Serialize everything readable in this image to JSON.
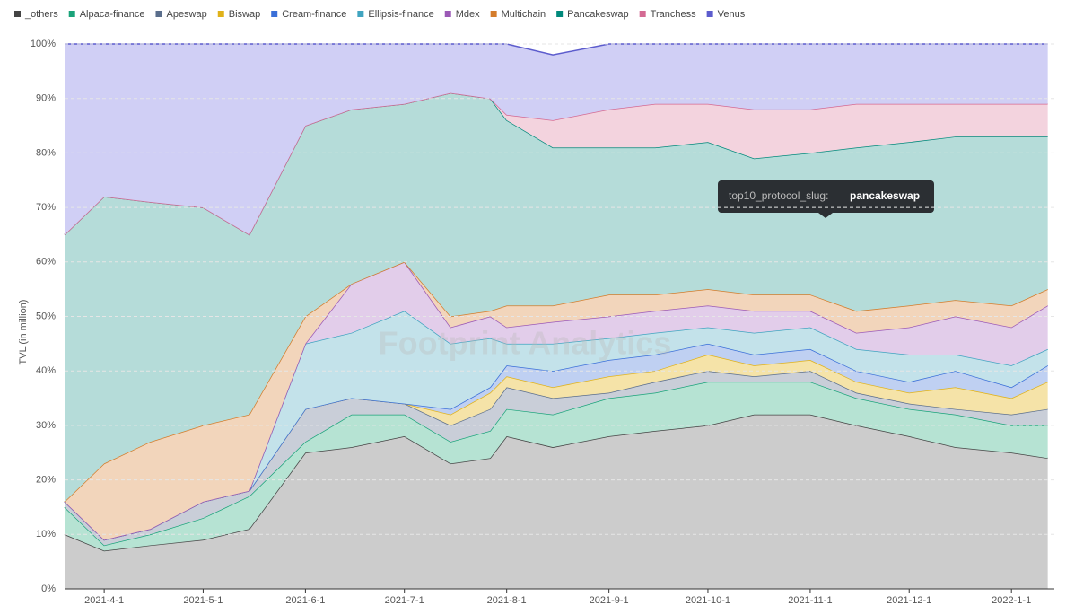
{
  "chart_data": {
    "type": "stacked-area-percent",
    "y_label": "TVL (in million)",
    "watermark": "Footprint Analytics",
    "tooltip": {
      "key": "top10_protocol_slug:",
      "value": "pancakeswap"
    },
    "grid": true,
    "legend_position": "top",
    "x": [
      "2021-03-20",
      "2021-04-01",
      "2021-04-15",
      "2021-05-01",
      "2021-05-15",
      "2021-06-01",
      "2021-06-15",
      "2021-07-01",
      "2021-07-15",
      "2021-07-27",
      "2021-08-01",
      "2021-08-15",
      "2021-09-01",
      "2021-09-15",
      "2021-10-01",
      "2021-10-15",
      "2021-11-01",
      "2021-11-15",
      "2021-12-01",
      "2021-12-15",
      "2022-01-01",
      "2022-01-12"
    ],
    "xlim": [
      "2021-03-20",
      "2022-01-14"
    ],
    "xticks": [
      "2021-4-1",
      "2021-5-1",
      "2021-6-1",
      "2021-7-1",
      "2021-8-1",
      "2021-9-1",
      "2021-10-1",
      "2021-11-1",
      "2021-12-1",
      "2022-1-1"
    ],
    "ylim": [
      0,
      100
    ],
    "yticks": [
      {
        "value": 0,
        "label": "0%"
      },
      {
        "value": 10,
        "label": "10%"
      },
      {
        "value": 20,
        "label": "20%"
      },
      {
        "value": 30,
        "label": "30%"
      },
      {
        "value": 40,
        "label": "40%"
      },
      {
        "value": 50,
        "label": "50%"
      },
      {
        "value": 60,
        "label": "60%"
      },
      {
        "value": 70,
        "label": "70%"
      },
      {
        "value": 80,
        "label": "80%"
      },
      {
        "value": 90,
        "label": "90%"
      },
      {
        "value": 100,
        "label": "100%"
      }
    ],
    "series": [
      {
        "name": "_others",
        "color": "#444444",
        "fill": "#cccccc",
        "values": [
          10,
          7,
          8,
          9,
          11,
          25,
          26,
          28,
          23,
          24,
          28,
          26,
          28,
          29,
          30,
          32,
          32,
          30,
          28,
          26,
          25,
          24
        ]
      },
      {
        "name": "Alpaca-finance",
        "color": "#1aa37a",
        "fill": "#b6e3d3",
        "values": [
          5,
          1,
          2,
          4,
          6,
          2,
          6,
          4,
          4,
          5,
          5,
          6,
          7,
          7,
          8,
          6,
          6,
          5,
          5,
          6,
          5,
          6
        ]
      },
      {
        "name": "Apeswap",
        "color": "#5a6e8c",
        "fill": "#c9ced8",
        "values": [
          1,
          1,
          1,
          3,
          1,
          6,
          3,
          2,
          3,
          4,
          4,
          3,
          1,
          2,
          2,
          1,
          2,
          1,
          1,
          1,
          2,
          3
        ]
      },
      {
        "name": "Biswap",
        "color": "#e0b21a",
        "fill": "#f5e3a8",
        "values": [
          0,
          0,
          0,
          0,
          0,
          0,
          0,
          0,
          2,
          3,
          2,
          2,
          3,
          2,
          3,
          2,
          2,
          2,
          2,
          4,
          3,
          5
        ]
      },
      {
        "name": "Cream-finance",
        "color": "#3a6fd8",
        "fill": "#bfd0f2",
        "values": [
          0,
          0,
          0,
          0,
          0,
          0,
          0,
          0,
          1,
          1,
          2,
          3,
          3,
          3,
          2,
          2,
          2,
          2,
          2,
          3,
          2,
          3
        ]
      },
      {
        "name": "Ellipsis-finance",
        "color": "#40a4c0",
        "fill": "#c3e2ea",
        "values": [
          0,
          0,
          0,
          0,
          0,
          12,
          12,
          17,
          12,
          9,
          4,
          5,
          4,
          4,
          3,
          4,
          4,
          4,
          5,
          3,
          4,
          3
        ]
      },
      {
        "name": "Mdex",
        "color": "#9b59b6",
        "fill": "#e2cdea",
        "values": [
          0,
          0,
          0,
          0,
          0,
          0,
          9,
          9,
          3,
          4,
          3,
          4,
          4,
          4,
          4,
          4,
          3,
          3,
          5,
          7,
          7,
          8
        ]
      },
      {
        "name": "Multichain",
        "color": "#d47c2b",
        "fill": "#f2d5bb",
        "values": [
          0,
          14,
          16,
          14,
          14,
          5,
          0,
          0,
          2,
          1,
          4,
          3,
          4,
          3,
          3,
          3,
          3,
          4,
          4,
          3,
          4,
          3
        ]
      },
      {
        "name": "Pancakeswap",
        "color": "#00897b",
        "fill": "#b5dcd9",
        "values": [
          49,
          49,
          44,
          40,
          33,
          35,
          32,
          29,
          41,
          39,
          34,
          29,
          27,
          27,
          27,
          25,
          26,
          30,
          30,
          30,
          31,
          28
        ]
      },
      {
        "name": "Tranchess",
        "color": "#d46a93",
        "fill": "#f3d3de",
        "values": [
          0,
          0,
          0,
          0,
          0,
          0,
          0,
          0,
          0,
          0,
          1,
          5,
          7,
          8,
          7,
          9,
          8,
          8,
          7,
          6,
          6,
          6
        ]
      },
      {
        "name": "Venus",
        "color": "#5c5ccd",
        "fill": "#d0cff5",
        "values": [
          35,
          28,
          29,
          30,
          35,
          15,
          12,
          11,
          9,
          10,
          13,
          12,
          12,
          11,
          11,
          12,
          12,
          11,
          11,
          11,
          11,
          11
        ]
      }
    ]
  }
}
